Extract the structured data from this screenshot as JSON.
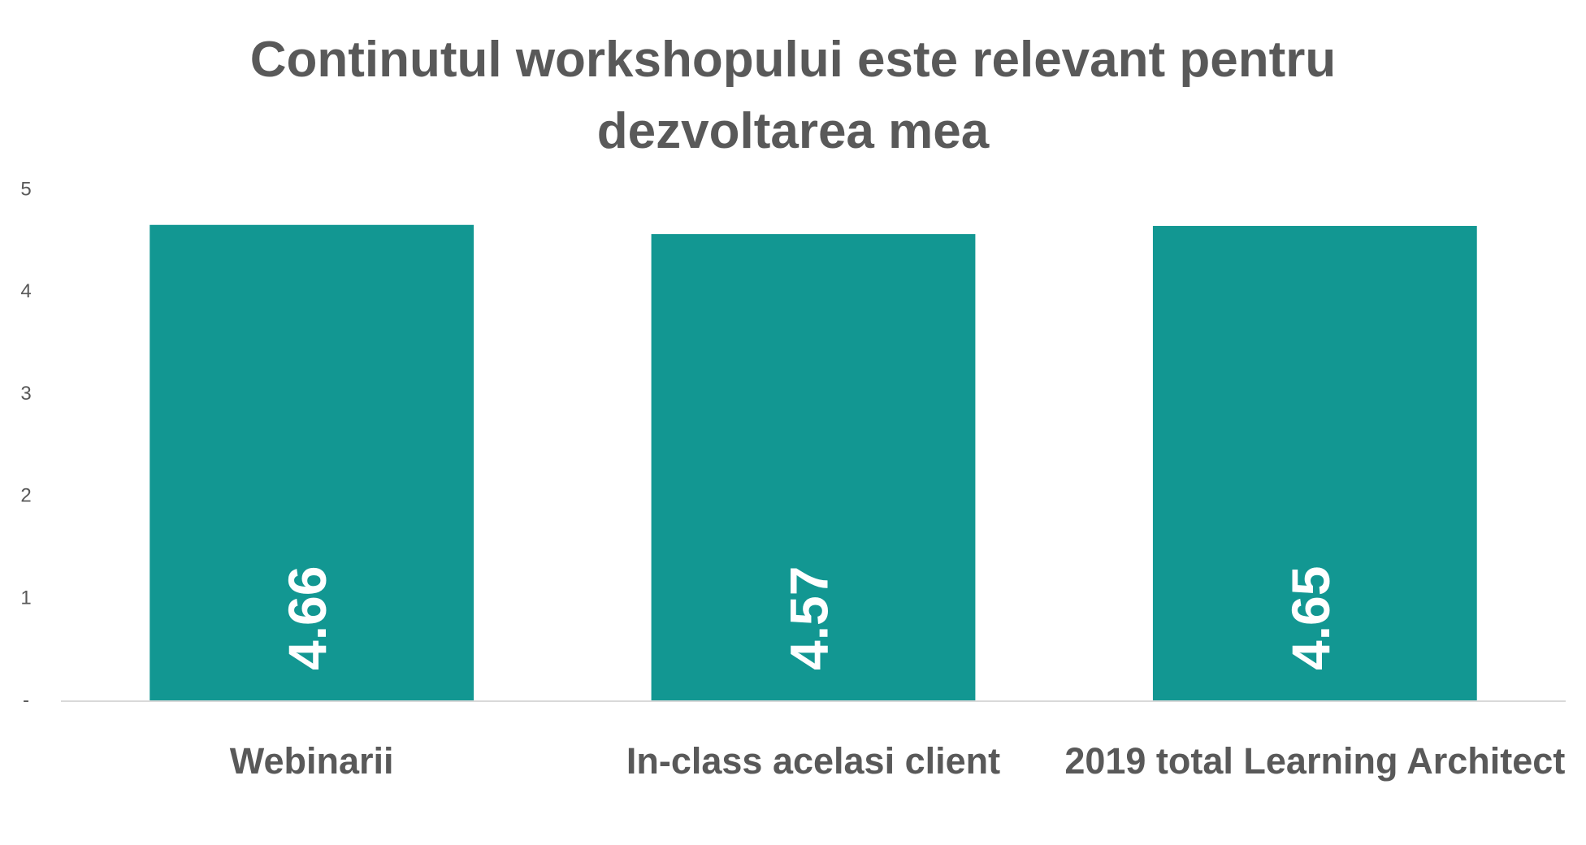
{
  "chart_data": {
    "type": "bar",
    "title": "Continutul workshopului este relevant pentru dezvoltarea mea",
    "categories": [
      "Webinarii",
      "In-class acelasi client",
      "2019 total Learning Architect"
    ],
    "values": [
      4.66,
      4.57,
      4.65
    ],
    "color": "#129792",
    "ylim": [
      0,
      5
    ],
    "yticks": [
      {
        "value": 0,
        "label": "-"
      },
      1,
      2,
      3,
      4,
      5
    ],
    "grid": false
  }
}
